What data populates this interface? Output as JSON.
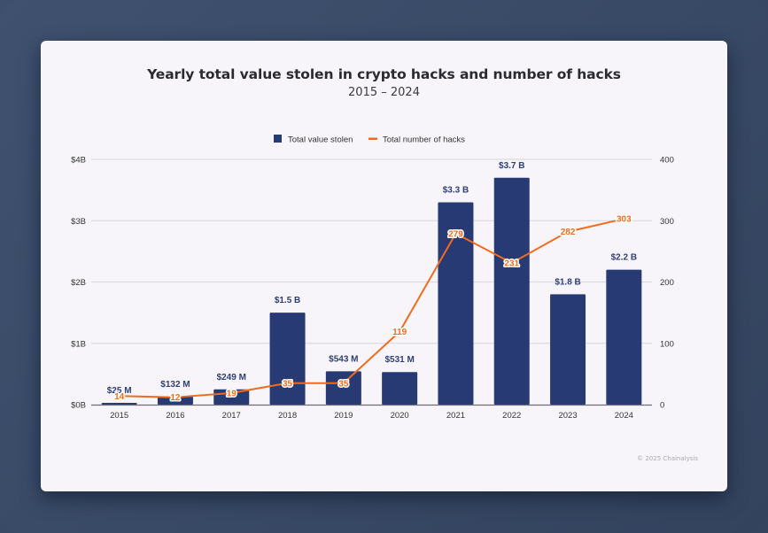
{
  "chart_data": {
    "type": "bar",
    "title": "Yearly total value stolen in crypto hacks and number of hacks",
    "subtitle": "2015 – 2024",
    "categories": [
      "2015",
      "2016",
      "2017",
      "2018",
      "2019",
      "2020",
      "2021",
      "2022",
      "2023",
      "2024"
    ],
    "series": [
      {
        "name": "Total value stolen",
        "type": "bar",
        "axis": "left",
        "unit": "USD billions",
        "values": [
          0.025,
          0.132,
          0.249,
          1.5,
          0.543,
          0.531,
          3.3,
          3.7,
          1.8,
          2.2
        ],
        "labels": [
          "$25  M",
          "$132  M",
          "$249  M",
          "$1.5 B",
          "$543  M",
          "$531  M",
          "$3.3 B",
          "$3.7 B",
          "$1.8 B",
          "$2.2 B"
        ],
        "color": "#283a74"
      },
      {
        "name": "Total number of hacks",
        "type": "line",
        "axis": "right",
        "values": [
          14,
          12,
          19,
          35,
          35,
          119,
          279,
          231,
          282,
          303
        ],
        "labels": [
          "14",
          "12",
          "19",
          "35",
          "35",
          "119",
          "279",
          "231",
          "282",
          "303"
        ],
        "color": "#f26b1d"
      }
    ],
    "ylim_left": [
      0,
      4
    ],
    "yticks_left": [
      "$0B",
      "$1B",
      "$2B",
      "$3B",
      "$4B"
    ],
    "ylim_right": [
      0,
      400
    ],
    "yticks_right": [
      "0",
      "100",
      "200",
      "300",
      "400"
    ],
    "xlabel": "",
    "ylabel": "",
    "grid": true,
    "legend_position": "top-center",
    "annotation": "© 2025 Chainalysis"
  },
  "colors": {
    "bar": "#283a74",
    "line": "#f26b1d",
    "grid": "#dcdbe0",
    "axis": "#6c6c72",
    "card": "#f7f5f9"
  }
}
